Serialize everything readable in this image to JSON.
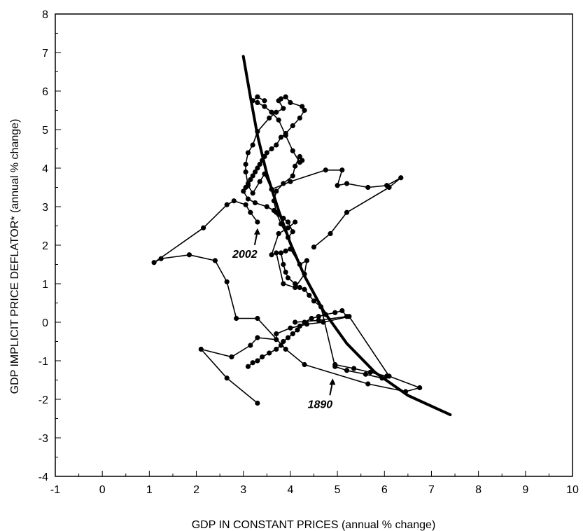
{
  "chart_data": {
    "type": "scatter",
    "title": "",
    "xlabel": "GDP IN CONSTANT PRICES (annual % change)",
    "ylabel": "GDP IMPLICIT PRICE DEFLATOR* (annual % change)",
    "xlim": [
      -1,
      10
    ],
    "ylim": [
      -4,
      8
    ],
    "x_ticks": [
      "-1",
      "0",
      "1",
      "2",
      "3",
      "4",
      "5",
      "6",
      "7",
      "8",
      "9",
      "10"
    ],
    "y_ticks": [
      "8",
      "7",
      "6",
      "5",
      "4",
      "3",
      "2",
      "1",
      "0",
      "-1",
      "-2",
      "-3",
      "-4"
    ],
    "grid": false,
    "legend": "none",
    "series": [
      {
        "style": "connected-dots",
        "x": [
          3.3,
          2.65,
          2.1,
          2.75,
          3.15,
          3.3,
          3.7,
          3.7,
          4.0,
          4.35,
          4.7,
          5.25,
          6.1,
          6.75,
          6.45,
          5.65,
          4.3,
          3.9,
          3.3,
          2.85,
          2.65,
          2.4,
          1.85,
          1.25,
          1.1,
          2.15,
          2.65,
          2.8,
          3.05,
          3.15,
          3.3
        ],
        "y": [
          -2.1,
          -1.45,
          -0.7,
          -0.9,
          -0.6,
          -0.4,
          -0.45,
          -0.3,
          -0.15,
          -0.05,
          0.0,
          0.15,
          -1.4,
          -1.7,
          -1.8,
          -1.6,
          -1.1,
          -0.7,
          0.1,
          0.1,
          1.05,
          1.6,
          1.75,
          1.65,
          1.55,
          2.45,
          3.05,
          3.15,
          3.05,
          2.85,
          2.6
        ]
      },
      {
        "style": "connected-dots",
        "x": [
          3.1,
          3.2,
          3.3,
          3.4,
          3.55,
          3.7,
          3.8,
          3.85,
          3.95,
          4.05,
          4.15,
          4.2,
          4.3,
          4.45,
          4.6,
          4.75,
          4.95,
          5.1,
          5.2,
          4.6,
          4.1
        ],
        "y": [
          -1.15,
          -1.05,
          -1.0,
          -0.9,
          -0.8,
          -0.7,
          -0.6,
          -0.5,
          -0.4,
          -0.3,
          -0.2,
          -0.1,
          0.0,
          0.1,
          0.15,
          0.2,
          0.25,
          0.3,
          0.15,
          0.05,
          0.0
        ]
      },
      {
        "style": "connected-dots",
        "x": [
          4.95,
          5.35,
          5.7,
          6.05,
          5.95,
          5.6,
          5.2,
          4.95,
          4.65,
          4.5,
          4.4,
          4.3,
          4.2,
          4.1,
          3.95,
          3.9,
          3.85,
          3.8,
          3.9,
          4.0,
          4.2,
          4.35,
          4.3,
          4.1,
          3.85,
          3.7,
          3.6,
          3.75,
          3.95,
          4.1
        ],
        "y": [
          -1.1,
          -1.2,
          -1.3,
          -1.4,
          -1.45,
          -1.35,
          -1.25,
          -1.15,
          0.4,
          0.55,
          0.7,
          0.85,
          0.9,
          1.0,
          1.15,
          1.3,
          1.5,
          1.8,
          1.85,
          1.9,
          1.5,
          1.6,
          1.25,
          0.9,
          1.0,
          1.8,
          1.75,
          2.3,
          2.45,
          2.6
        ]
      },
      {
        "style": "connected-dots",
        "x": [
          4.5,
          4.85,
          5.2,
          6.1,
          6.35,
          6.05,
          5.65,
          5.2,
          5.0,
          5.1,
          4.75,
          4.0,
          3.6,
          3.45,
          3.35,
          3.2,
          3.1,
          3.05,
          3.05,
          3.1,
          3.2,
          3.3,
          3.55,
          3.7,
          3.85,
          3.75,
          3.8,
          3.9,
          4.0,
          4.25,
          4.3,
          4.2,
          4.05,
          3.9,
          3.8,
          3.7,
          3.6,
          3.5,
          3.45,
          3.4,
          3.35,
          3.3,
          3.25,
          3.2,
          3.15,
          3.1,
          3.05,
          3.0,
          3.1,
          3.25,
          3.5,
          3.65,
          3.75,
          3.85,
          3.95
        ],
        "y": [
          1.95,
          2.3,
          2.85,
          3.5,
          3.75,
          3.55,
          3.5,
          3.6,
          3.55,
          3.95,
          3.95,
          3.65,
          3.45,
          3.85,
          3.65,
          3.35,
          3.55,
          3.9,
          4.1,
          4.4,
          4.6,
          4.95,
          5.3,
          5.45,
          5.55,
          5.75,
          5.8,
          5.85,
          5.7,
          5.6,
          5.5,
          5.3,
          5.1,
          4.9,
          4.8,
          4.6,
          4.5,
          4.4,
          4.3,
          4.2,
          4.1,
          4.0,
          3.9,
          3.8,
          3.7,
          3.6,
          3.5,
          3.4,
          3.2,
          3.1,
          3.0,
          2.9,
          2.8,
          2.7,
          2.6
        ]
      },
      {
        "style": "connected-dots",
        "x": [
          3.95,
          4.05,
          3.95,
          3.8,
          3.7,
          3.65,
          3.7,
          3.85,
          4.05,
          4.1,
          4.2,
          4.25,
          4.2,
          4.05,
          3.9,
          3.75,
          3.6,
          3.45,
          3.3,
          3.2,
          3.3,
          3.45
        ],
        "y": [
          2.6,
          2.35,
          2.2,
          2.55,
          2.85,
          3.15,
          3.4,
          3.6,
          3.8,
          4.05,
          4.3,
          4.2,
          4.15,
          4.45,
          4.85,
          5.25,
          5.45,
          5.6,
          5.7,
          5.75,
          5.85,
          5.75
        ]
      }
    ],
    "curve": {
      "style": "fitted-line",
      "x": [
        3.0,
        3.15,
        3.3,
        3.5,
        3.75,
        4.0,
        4.3,
        4.7,
        5.2,
        5.8,
        6.5,
        7.4
      ],
      "y": [
        6.9,
        5.85,
        4.85,
        3.85,
        2.9,
        2.05,
        1.2,
        0.3,
        -0.55,
        -1.3,
        -1.9,
        -2.4
      ]
    },
    "annotations": [
      {
        "text": "2002",
        "x": 3.3,
        "y": 2.55
      },
      {
        "text": "1890",
        "x": 4.9,
        "y": -1.35
      }
    ]
  }
}
